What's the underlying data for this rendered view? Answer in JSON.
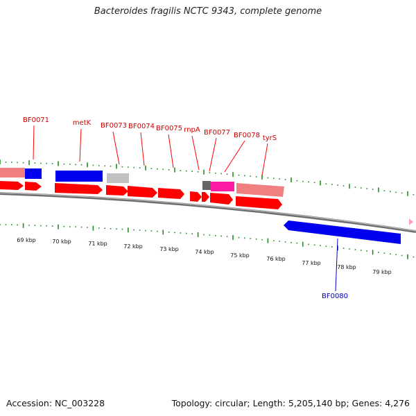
{
  "title": "Bacteroides fragilis NCTC 9343, complete genome",
  "footer": {
    "accession": "Accession: NC_003228",
    "stats": "Topology: circular; Length: 5,205,140 bp; Genes: 4,276"
  },
  "colors": {
    "forward_cds": "#ff0000",
    "forward_label": "#cc0000",
    "reverse_label": "#0000bb",
    "blue_feature": "#0000ee",
    "pink_feature": "#f08080",
    "magenta_feature": "#ff1aa3",
    "gray_feature": "#c0c0c0",
    "dark_gray_feature": "#666666",
    "ruler_tick": "#228b22",
    "backbone": "#888888"
  },
  "gene_labels_top": [
    "BF0071",
    "metK",
    "BF0073",
    "BF0074",
    "BF0075",
    "rnpA",
    "BF0077",
    "BF0078",
    "tyrS"
  ],
  "gene_labels_bottom": [
    "BF0080"
  ],
  "kbp_labels": [
    "69 kbp",
    "70 kbp",
    "71 kbp",
    "72 kbp",
    "73 kbp",
    "74 kbp",
    "75 kbp",
    "76 kbp",
    "77 kbp",
    "78 kbp",
    "79 kbp"
  ]
}
